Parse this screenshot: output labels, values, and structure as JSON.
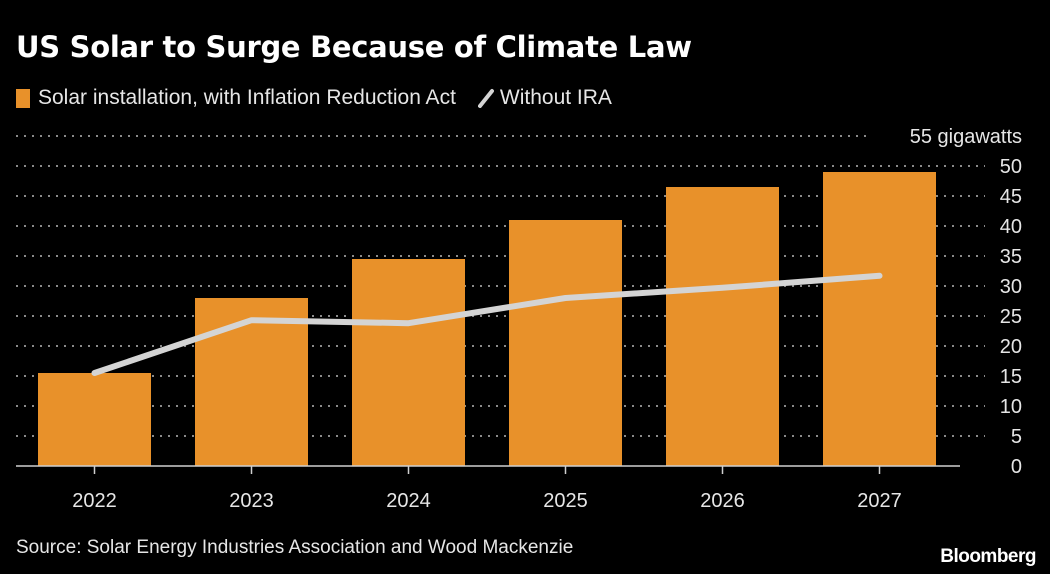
{
  "title": "US Solar to Surge Because of Climate Law",
  "legend": {
    "bars_label": "Solar installation, with Inflation Reduction Act",
    "line_label": "Without IRA"
  },
  "source": "Source: Solar Energy Industries Association and Wood Mackenzie",
  "brand": "Bloomberg",
  "colors": {
    "bar": "#e8912a",
    "line": "#d4d4d4",
    "background": "#000000",
    "grid": "#8a8a8a"
  },
  "chart_data": {
    "type": "bar",
    "title": "US Solar to Surge Because of Climate Law",
    "categories": [
      "2022",
      "2023",
      "2024",
      "2025",
      "2026",
      "2027"
    ],
    "series": [
      {
        "name": "Solar installation, with Inflation Reduction Act",
        "type": "bar",
        "values": [
          15.5,
          28,
          34.5,
          41,
          46.5,
          49
        ]
      },
      {
        "name": "Without IRA",
        "type": "line",
        "values": [
          15.5,
          24.3,
          23.8,
          28,
          29.7,
          31.7
        ]
      }
    ],
    "xlabel": "",
    "ylabel": "gigawatts",
    "y_ticks": [
      "0",
      "5",
      "10",
      "15",
      "20",
      "25",
      "30",
      "35",
      "40",
      "45",
      "50"
    ],
    "y_top_label": "55 gigawatts",
    "ylim": [
      0,
      55
    ],
    "grid": true,
    "y_axis_side": "right",
    "legend_position": "top-left"
  }
}
